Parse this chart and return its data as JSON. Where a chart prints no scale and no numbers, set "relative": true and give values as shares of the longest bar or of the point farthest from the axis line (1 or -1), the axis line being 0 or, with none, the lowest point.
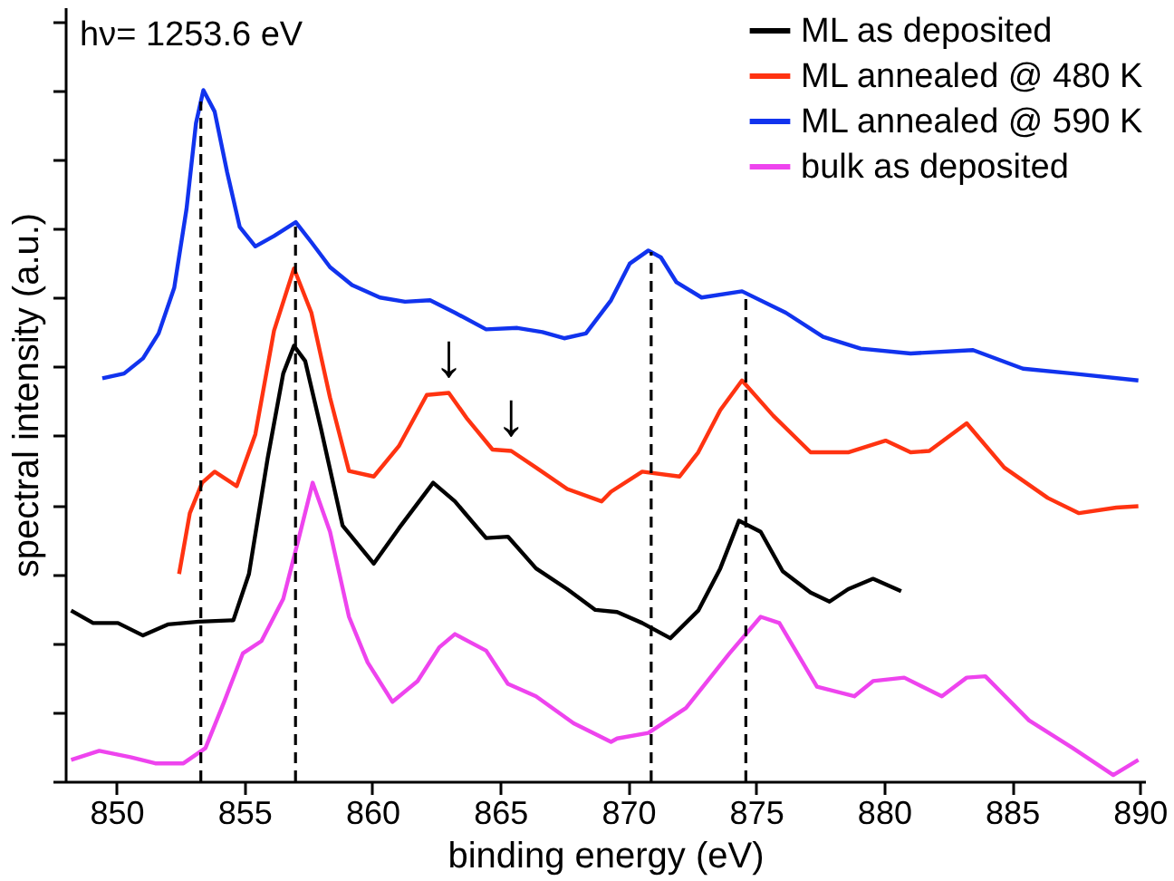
{
  "chart_data": {
    "type": "line",
    "relative": true,
    "xlabel": "binding energy (eV)",
    "ylabel": "spectral intensity (a.u.)",
    "xlim": [
      848,
      890.2
    ],
    "xticks": [
      850,
      855,
      860,
      865,
      870,
      875,
      880,
      885,
      890
    ],
    "legend": "top right",
    "grid": false,
    "line_style": "solid",
    "marker": "none",
    "annotations": [
      "hν= 1253.6 eV",
      {
        "text": "↓",
        "x": 862.99,
        "y": 0.562
      },
      {
        "text": "↓",
        "x": 865.43,
        "y": 0.478
      }
    ],
    "ref_lines": [
      {
        "axis": "x",
        "value": 853.3,
        "color": "#000000",
        "line_style": "dashed"
      },
      {
        "axis": "x",
        "value": 857.0,
        "color": "#000000",
        "line_style": "dashed"
      },
      {
        "axis": "x",
        "value": 870.9,
        "color": "#000000",
        "line_style": "dashed"
      },
      {
        "axis": "x",
        "value": 874.6,
        "color": "#000000",
        "line_style": "dashed"
      }
    ],
    "series": [
      {
        "name": "ML as deposited",
        "color": "#000000",
        "x": [
          848.23,
          849.09,
          850.06,
          851.04,
          852.01,
          853.23,
          854.57,
          855.18,
          855.91,
          856.52,
          856.94,
          857.38,
          857.99,
          858.84,
          860.06,
          861.04,
          862.38,
          863.23,
          864.45,
          865.3,
          866.4,
          867.62,
          868.72,
          869.57,
          870.55,
          871.65,
          872.74,
          873.6,
          874.33,
          875.18,
          876.04,
          877.13,
          877.87,
          878.6,
          879.57,
          880.67
        ],
        "values": [
          0.247,
          0.229,
          0.229,
          0.211,
          0.227,
          0.231,
          0.233,
          0.3,
          0.467,
          0.59,
          0.63,
          0.608,
          0.511,
          0.37,
          0.315,
          0.366,
          0.432,
          0.405,
          0.352,
          0.354,
          0.308,
          0.278,
          0.248,
          0.245,
          0.229,
          0.207,
          0.247,
          0.308,
          0.377,
          0.361,
          0.304,
          0.273,
          0.26,
          0.278,
          0.293,
          0.275
        ]
      },
      {
        "name": "ML annealed @ 480 K",
        "color": "#ff3311",
        "x": [
          852.45,
          852.87,
          853.35,
          853.84,
          854.7,
          855.43,
          856.16,
          856.94,
          857.62,
          858.35,
          859.09,
          860.06,
          861.04,
          862.13,
          862.99,
          863.72,
          864.7,
          865.43,
          866.4,
          867.62,
          868.96,
          869.33,
          870.55,
          872.01,
          872.74,
          873.6,
          874.45,
          875.67,
          877.13,
          878.6,
          880.06,
          881.04,
          881.77,
          883.23,
          884.7,
          886.4,
          887.62,
          889.08,
          889.94
        ],
        "values": [
          0.3,
          0.388,
          0.432,
          0.448,
          0.427,
          0.502,
          0.652,
          0.742,
          0.678,
          0.555,
          0.449,
          0.441,
          0.485,
          0.559,
          0.562,
          0.524,
          0.48,
          0.478,
          0.454,
          0.423,
          0.405,
          0.419,
          0.448,
          0.441,
          0.476,
          0.537,
          0.58,
          0.529,
          0.476,
          0.476,
          0.493,
          0.476,
          0.478,
          0.518,
          0.454,
          0.41,
          0.388,
          0.396,
          0.398
        ]
      },
      {
        "name": "ML annealed @ 590 K",
        "color": "#1133ee",
        "x": [
          849.45,
          850.3,
          851.04,
          851.65,
          852.26,
          852.74,
          853.11,
          853.4,
          853.84,
          854.33,
          854.82,
          855.43,
          856.16,
          857.01,
          857.62,
          858.35,
          859.21,
          860.3,
          861.28,
          862.26,
          863.23,
          864.45,
          865.67,
          866.65,
          867.5,
          868.35,
          869.33,
          870.06,
          870.79,
          871.28,
          871.89,
          872.87,
          874.45,
          876.16,
          877.62,
          879.09,
          881.04,
          883.48,
          885.43,
          887.38,
          889.94
        ],
        "values": [
          0.583,
          0.59,
          0.612,
          0.648,
          0.714,
          0.828,
          0.952,
          1.0,
          0.969,
          0.881,
          0.802,
          0.774,
          0.789,
          0.809,
          0.78,
          0.744,
          0.718,
          0.7,
          0.694,
          0.696,
          0.678,
          0.654,
          0.656,
          0.65,
          0.641,
          0.648,
          0.696,
          0.749,
          0.768,
          0.758,
          0.722,
          0.7,
          0.709,
          0.678,
          0.643,
          0.626,
          0.619,
          0.624,
          0.597,
          0.59,
          0.58
        ]
      },
      {
        "name": "bulk as deposited",
        "color": "#ee44ee",
        "x": [
          848.23,
          849.33,
          850.55,
          851.52,
          852.62,
          853.48,
          854.21,
          854.94,
          855.67,
          856.52,
          857.13,
          857.67,
          858.35,
          859.09,
          859.82,
          860.79,
          861.77,
          862.62,
          863.23,
          864.45,
          865.3,
          866.4,
          867.87,
          869.33,
          869.57,
          870.79,
          872.26,
          873.96,
          875.18,
          875.91,
          877.38,
          878.84,
          879.57,
          880.79,
          882.26,
          883.23,
          883.96,
          885.67,
          887.38,
          888.96,
          889.94
        ],
        "values": [
          0.031,
          0.044,
          0.035,
          0.026,
          0.026,
          0.048,
          0.115,
          0.185,
          0.203,
          0.264,
          0.352,
          0.432,
          0.361,
          0.238,
          0.172,
          0.115,
          0.145,
          0.194,
          0.213,
          0.189,
          0.141,
          0.123,
          0.084,
          0.057,
          0.062,
          0.07,
          0.106,
          0.185,
          0.238,
          0.229,
          0.137,
          0.123,
          0.145,
          0.15,
          0.123,
          0.15,
          0.152,
          0.088,
          0.048,
          0.009,
          0.031
        ]
      }
    ]
  }
}
